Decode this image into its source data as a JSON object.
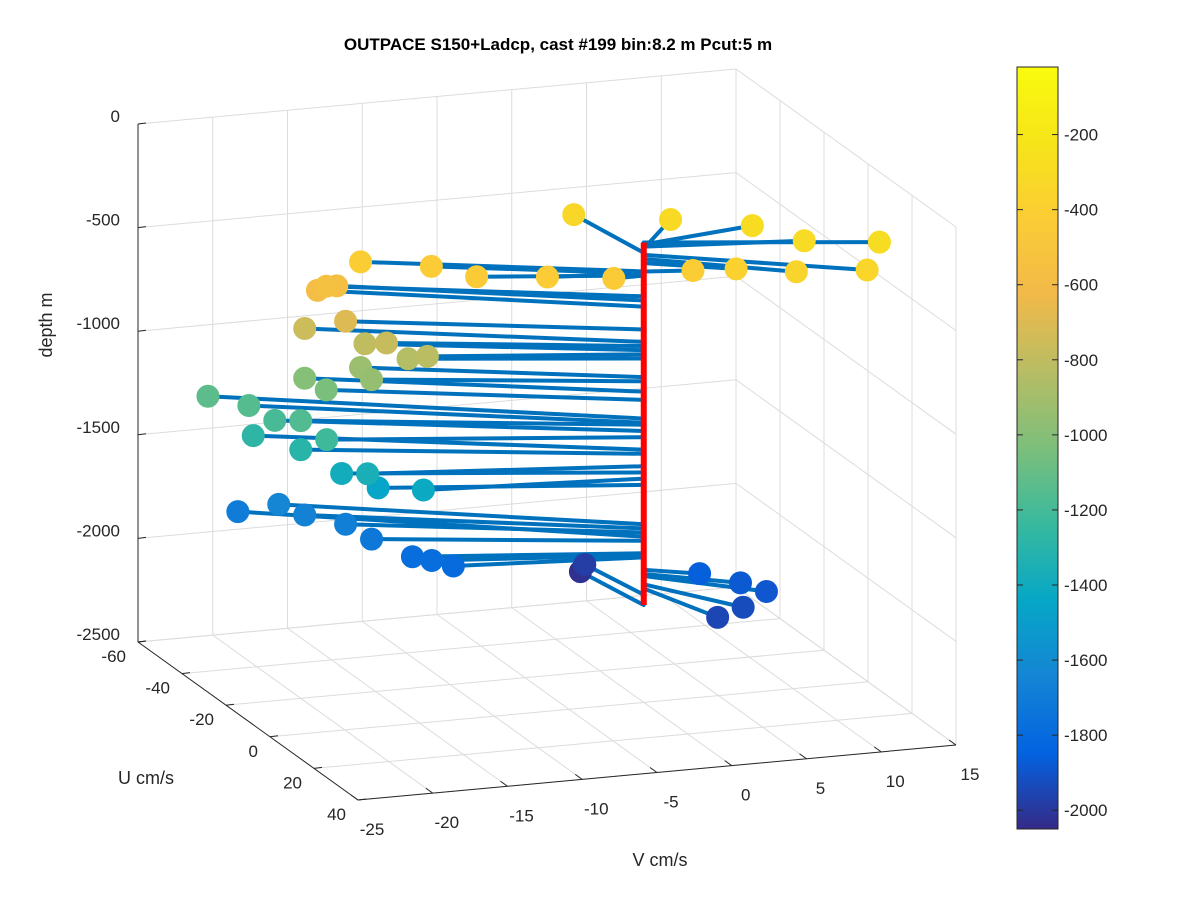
{
  "chart_data": {
    "type": "scatter",
    "title": "OUTPACE S150+Ladcp, cast #199 bin:8.2 m  Pcut:5 m",
    "xlabel": "U cm/s",
    "ylabel": "V cm/s",
    "zlabel": "depth m",
    "xlim": [
      -60,
      40
    ],
    "ylim": [
      -25,
      15
    ],
    "zlim": [
      -2500,
      0
    ],
    "x_ticks": [
      "-60",
      "-40",
      "-20",
      "0",
      "20",
      "40"
    ],
    "y_ticks": [
      "-25",
      "-20",
      "-15",
      "-10",
      "-5",
      "0",
      "5",
      "10",
      "15"
    ],
    "z_ticks": [
      "0",
      "-500",
      "-1000",
      "-1500",
      "-2000",
      "-2500"
    ],
    "grid": true,
    "stem_color": "#0072bd",
    "profile_line_color": "#ff0000",
    "colorbar": {
      "colormap": "parula",
      "range": [
        -2050,
        -20
      ],
      "ticks": [
        "-200",
        "-400",
        "-600",
        "-800",
        "-1000",
        "-1200",
        "-1400",
        "-1600",
        "-1800",
        "-2000"
      ],
      "tick_values": [
        -200,
        -400,
        -600,
        -800,
        -1000,
        -1200,
        -1400,
        -1600,
        -1800,
        -2000
      ]
    },
    "points": [
      {
        "u": -25,
        "v": -1,
        "depth": -330
      },
      {
        "u": -15,
        "v": 4,
        "depth": -310
      },
      {
        "u": -5,
        "v": 8,
        "depth": -290
      },
      {
        "u": 5,
        "v": 10,
        "depth": -300
      },
      {
        "u": 12,
        "v": 14,
        "depth": -280
      },
      {
        "u": 20,
        "v": 12,
        "depth": -340
      },
      {
        "u": 15,
        "v": 8,
        "depth": -360
      },
      {
        "u": 8,
        "v": 5,
        "depth": -380
      },
      {
        "u": 2,
        "v": 3,
        "depth": -420
      },
      {
        "u": 0,
        "v": -2,
        "depth": -440
      },
      {
        "u": -3,
        "v": -6,
        "depth": -430
      },
      {
        "u": -8,
        "v": -10,
        "depth": -440
      },
      {
        "u": -15,
        "v": -12,
        "depth": -430
      },
      {
        "u": -20,
        "v": -16,
        "depth": -420
      },
      {
        "u": -22,
        "v": -18,
        "depth": -540
      },
      {
        "u": -24,
        "v": -17,
        "depth": -560
      },
      {
        "u": -26,
        "v": -18,
        "depth": -590
      },
      {
        "u": -20,
        "v": -17,
        "depth": -700
      },
      {
        "u": -25,
        "v": -19,
        "depth": -760
      },
      {
        "u": -15,
        "v": -15,
        "depth": -780
      },
      {
        "u": -18,
        "v": -16,
        "depth": -800
      },
      {
        "u": -10,
        "v": -13,
        "depth": -820
      },
      {
        "u": -12,
        "v": -14,
        "depth": -840
      },
      {
        "u": -20,
        "v": -16,
        "depth": -930
      },
      {
        "u": -15,
        "v": -16,
        "depth": -950
      },
      {
        "u": -25,
        "v": -19,
        "depth": -1000
      },
      {
        "u": -22,
        "v": -18,
        "depth": -1040
      },
      {
        "u": -35,
        "v": -24,
        "depth": -1130
      },
      {
        "u": -30,
        "v": -22,
        "depth": -1150
      },
      {
        "u": -20,
        "v": -20,
        "depth": -1160
      },
      {
        "u": -25,
        "v": -21,
        "depth": -1190
      },
      {
        "u": -15,
        "v": -19,
        "depth": -1220
      },
      {
        "u": -28,
        "v": -22,
        "depth": -1280
      },
      {
        "u": -20,
        "v": -20,
        "depth": -1300
      },
      {
        "u": -10,
        "v": -17,
        "depth": -1360
      },
      {
        "u": -15,
        "v": -18,
        "depth": -1390
      },
      {
        "u": -5,
        "v": -14,
        "depth": -1420
      },
      {
        "u": -12,
        "v": -16,
        "depth": -1450
      },
      {
        "u": -30,
        "v": -20,
        "depth": -1640
      },
      {
        "u": -25,
        "v": -19,
        "depth": -1660
      },
      {
        "u": -20,
        "v": -17,
        "depth": -1680
      },
      {
        "u": -35,
        "v": -22,
        "depth": -1700
      },
      {
        "u": -15,
        "v": -16,
        "depth": -1720
      },
      {
        "u": -10,
        "v": -14,
        "depth": -1780
      },
      {
        "u": -5,
        "v": -12,
        "depth": -1800
      },
      {
        "u": -8,
        "v": -13,
        "depth": -1790
      },
      {
        "u": 5,
        "v": 3,
        "depth": -1860
      },
      {
        "u": 10,
        "v": 5,
        "depth": -1880
      },
      {
        "u": 15,
        "v": 6,
        "depth": -1890
      },
      {
        "u": 18,
        "v": 4,
        "depth": -1930
      },
      {
        "u": 20,
        "v": 2,
        "depth": -1950
      },
      {
        "u": -20,
        "v": -1,
        "depth": -1980
      },
      {
        "u": -22,
        "v": -1,
        "depth": -2030
      }
    ]
  }
}
